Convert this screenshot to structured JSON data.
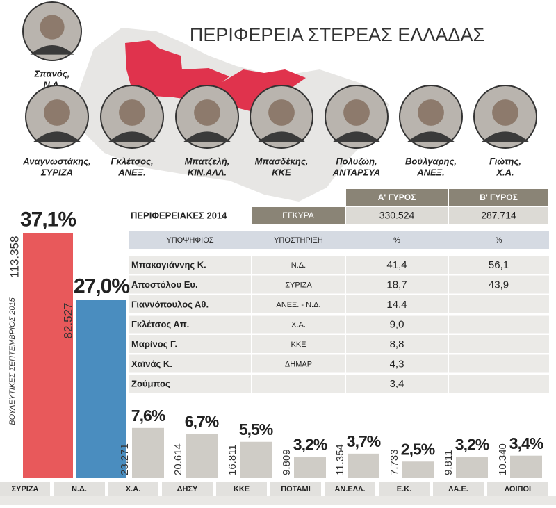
{
  "title": "ΠΕΡΙΦΕΡΕΙΑ ΣΤΕΡΕΑΣ ΕΛΛΑΔΑΣ",
  "candidates": [
    {
      "name": "Σπανός,",
      "party": "Ν.Δ."
    },
    {
      "name": "Αναγνωστάκης,",
      "party": "ΣΥΡΙΖΑ"
    },
    {
      "name": "Γκλέτσος,",
      "party": "ΑΝΕΞ."
    },
    {
      "name": "Μπατζελή,",
      "party": "ΚΙΝ.ΑΛΛ."
    },
    {
      "name": "Μπασδέκης,",
      "party": "ΚΚΕ"
    },
    {
      "name": "Πολυζώη,",
      "party": "ΑΝΤΑΡΣΥΑ"
    },
    {
      "name": "Βούλγαρης,",
      "party": "ΑΝΕΞ."
    },
    {
      "name": "Γιώτης,",
      "party": "Χ.Α."
    }
  ],
  "table": {
    "rounds": [
      "Α' ΓΥΡΟΣ",
      "Β' ΓΥΡΟΣ"
    ],
    "title": "ΠΕΡΙΦΕΡΕΙΑΚΕΣ 2014",
    "valid_label": "ΕΓΚΥΡΑ",
    "valid": [
      "330.524",
      "287.714"
    ],
    "headers": [
      "ΥΠΟΨΗΦΙΟΣ",
      "ΥΠΟΣΤΗΡΙΞΗ",
      "%",
      "%"
    ],
    "rows": [
      [
        "Μπακογιάννης Κ.",
        "Ν.Δ.",
        "41,4",
        "56,1"
      ],
      [
        "Αποστόλου Ευ.",
        "ΣΥΡΙΖΑ",
        "18,7",
        "43,9"
      ],
      [
        "Γιαννόπουλος Αθ.",
        "ΑΝΕΞ. - Ν.Δ.",
        "14,4",
        null
      ],
      [
        "Γκλέτσος Απ.",
        "Χ.Α.",
        "9,0",
        null
      ],
      [
        "Μαρίνος Γ.",
        "ΚΚΕ",
        "8,8",
        null
      ],
      [
        "Χαϊνάς Κ.",
        "ΔΗΜΑΡ",
        "4,3",
        null
      ],
      [
        "Ζούμπος",
        null,
        "3,4",
        null
      ]
    ]
  },
  "chart_data": {
    "type": "bar",
    "y_label": "ΒΟΥΛΕΥΤΙΚΕΣ ΣΕΠΤΕΜΒΡΙΟΣ 2015",
    "categories": [
      "ΣΥΡΙΖΑ",
      "Ν.Δ.",
      "Χ.Α.",
      "ΔΗΣΥ",
      "ΚΚΕ",
      "ΠΟΤΑΜΙ",
      "ΑΝ.ΕΛΛ.",
      "Ε.Κ.",
      "ΛΑ.Ε.",
      "ΛΟΙΠΟΙ"
    ],
    "values": [
      37.1,
      27.0,
      7.6,
      6.7,
      5.5,
      3.2,
      3.7,
      2.5,
      3.2,
      3.4
    ],
    "value_labels": [
      "37,1%",
      "27,0%",
      "7,6%",
      "6,7%",
      "5,5%",
      "3,2%",
      "3,7%",
      "2,5%",
      "3,2%",
      "3,4%"
    ],
    "votes": [
      113358,
      82527,
      23271,
      20614,
      16811,
      9809,
      11354,
      7733,
      9811,
      10340
    ],
    "vote_labels": [
      "113.358",
      "82.527",
      "23.271",
      "20.614",
      "16.811",
      "9.809",
      "11.354",
      "7.733",
      "9.811",
      "10.340"
    ],
    "colors": [
      "#e8595b",
      "#4a8dbf",
      "#cfccc6",
      "#cfccc6",
      "#cfccc6",
      "#cfccc6",
      "#cfccc6",
      "#cfccc6",
      "#cfccc6",
      "#cfccc6"
    ],
    "ylim": [
      0,
      40
    ]
  }
}
